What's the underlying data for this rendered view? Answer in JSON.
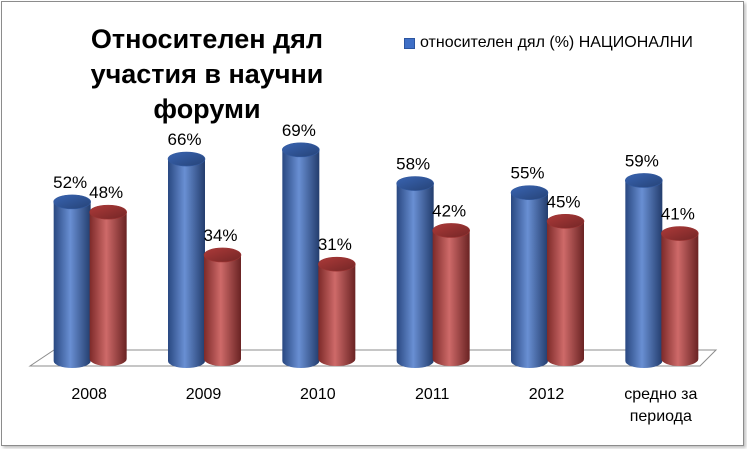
{
  "chart_data": {
    "type": "bar",
    "title_lines": [
      "Относителен дял",
      "участия в научни форуми"
    ],
    "categories": [
      [
        "2008"
      ],
      [
        "2009"
      ],
      [
        "2010"
      ],
      [
        "2011"
      ],
      [
        "2012"
      ],
      [
        "средно за",
        "периода"
      ]
    ],
    "series": [
      {
        "name": "относителен дял (%) НАЦИОНАЛНИ",
        "values": [
          52,
          66,
          69,
          58,
          55,
          59
        ],
        "labels": [
          "52%",
          "66%",
          "69%",
          "58%",
          "55%",
          "59%"
        ],
        "color": "#3f6fc6"
      },
      {
        "values": [
          48,
          34,
          31,
          42,
          45,
          41
        ],
        "labels": [
          "48%",
          "34%",
          "31%",
          "42%",
          "45%",
          "41%"
        ],
        "color": "#c0403f"
      }
    ],
    "ylim": [
      0,
      100
    ],
    "grid": false,
    "legend_position": "top-right"
  }
}
